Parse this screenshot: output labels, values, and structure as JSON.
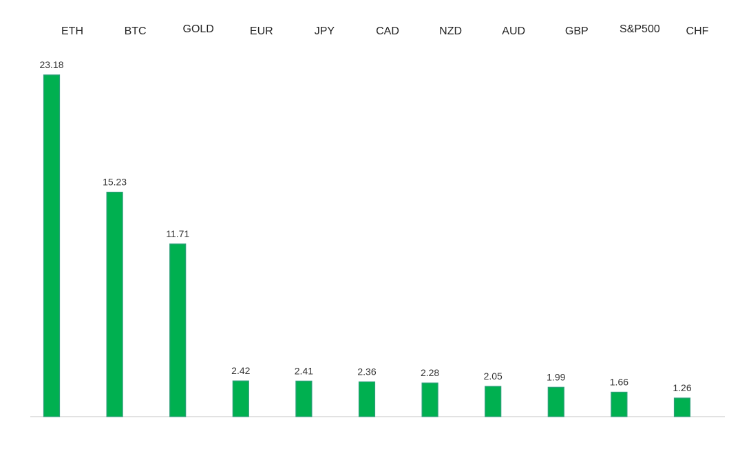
{
  "chart_data": {
    "type": "bar",
    "categories": [
      "ETH",
      "BTC",
      "GOLD",
      "EUR",
      "JPY",
      "CAD",
      "NZD",
      "AUD",
      "GBP",
      "S&P500",
      "CHF"
    ],
    "values": [
      23.18,
      15.23,
      11.71,
      2.42,
      2.41,
      2.36,
      2.28,
      2.05,
      1.99,
      1.66,
      1.26
    ],
    "value_labels": [
      "23.18",
      "15.23",
      "11.71",
      "2.42",
      "2.41",
      "2.36",
      "2.28",
      "2.05",
      "1.99",
      "1.66",
      "1.26"
    ],
    "title": "",
    "xlabel": "",
    "ylabel": "",
    "ylim": [
      0,
      25
    ],
    "grid": false,
    "legend": "none",
    "category_label_position": "top",
    "bar_color": "#00b050",
    "bar_edge_color": "#2e9e7a",
    "axis_color": "#d9d9d9"
  }
}
